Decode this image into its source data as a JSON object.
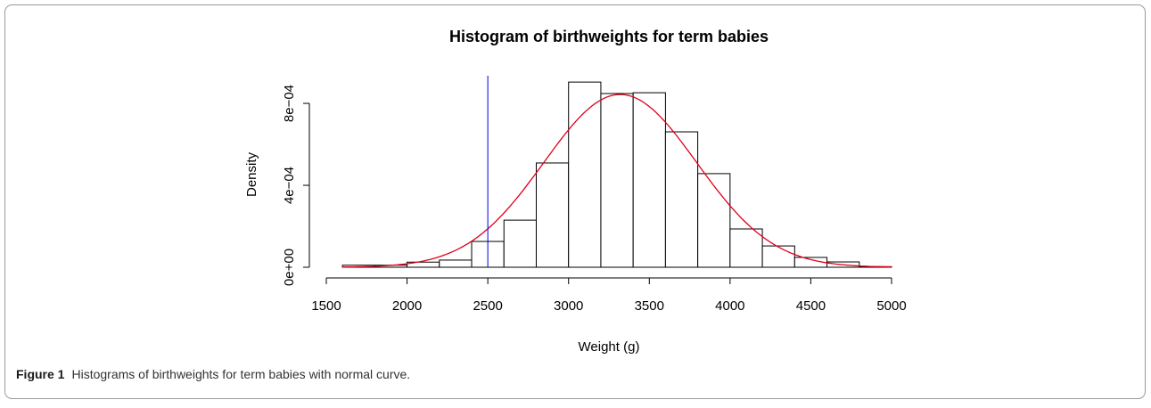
{
  "chart_data": {
    "type": "histogram",
    "title": "Histogram of birthweights for term babies",
    "x_label": "Weight (g)",
    "y_label": "Density",
    "bins": [
      1600,
      1800,
      2000,
      2200,
      2400,
      2600,
      2800,
      3000,
      3200,
      3400,
      3600,
      3800,
      4000,
      4200,
      4400,
      4600,
      4800,
      5000
    ],
    "values": [
      1e-05,
      1e-05,
      2.5e-05,
      3.5e-05,
      0.000126,
      0.00023,
      0.000509,
      0.000904,
      0.000848,
      0.000852,
      0.000661,
      0.000457,
      0.000187,
      0.000104,
      4.8e-05,
      2.6e-05,
      3e-06
    ],
    "color": "#ffffff",
    "edge_color": "#000000",
    "curve": {
      "mean": 3320,
      "sd": 473,
      "color": "#e0001b"
    },
    "vline": {
      "value": 2500,
      "color": "#0000e0"
    },
    "xlim": [
      1500,
      5000
    ],
    "xticks": [
      1500,
      2000,
      2500,
      3000,
      3500,
      4000,
      4500,
      5000
    ],
    "ylim": [
      0,
      0.000935
    ],
    "yticks": [
      {
        "value": 0,
        "label": "0e+00"
      },
      {
        "value": 0.0004,
        "label": "4e−04"
      },
      {
        "value": 0.0008,
        "label": "8e−04"
      }
    ]
  },
  "caption": {
    "label": "Figure 1",
    "text": "Histograms of birthweights for term babies with normal curve."
  }
}
